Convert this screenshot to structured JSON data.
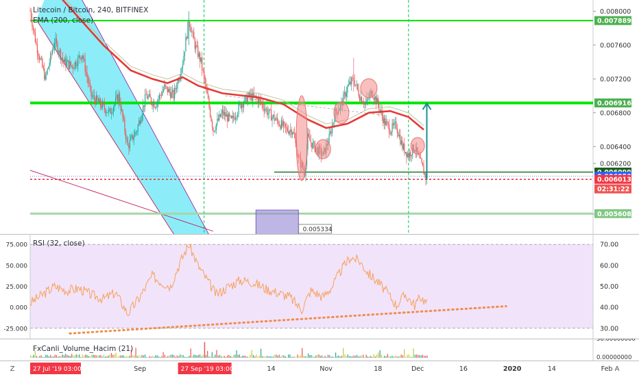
{
  "chart_data": [
    {
      "type": "candlestick",
      "title": "Litecoin / Bitcoin, 240, BITFINEX",
      "indicator": "EMA (200, close)",
      "price_axis": {
        "ticks": [
          "0.008000",
          "0.007600",
          "0.007200",
          "0.006800",
          "0.006400",
          "0.006200",
          "0.005600"
        ],
        "ylim": [
          0.0054,
          0.0081
        ]
      },
      "price_labels": [
        {
          "value": "0.007889",
          "color": "#4caf50"
        },
        {
          "value": "0.006916",
          "color": "#4caf50"
        },
        {
          "value": "0.006099",
          "color": "#1b5e20"
        },
        {
          "value": "0.006050",
          "color": "#2962ff"
        },
        {
          "value": "02:31:22",
          "color": "#ef5350"
        },
        {
          "value": "0.006013",
          "color": "#f23645"
        },
        {
          "value": "0.005608",
          "color": "#81c784"
        }
      ],
      "horizontal_levels": [
        0.007889,
        0.006916,
        0.006099,
        0.006013,
        0.005608
      ],
      "ema_200": [
        [
          "2019-07-27",
          0.0086
        ],
        [
          "2019-08-05",
          0.0082
        ],
        [
          "2019-08-20",
          0.0076
        ],
        [
          "2019-08-29",
          0.0073
        ],
        [
          "2019-09-05",
          0.0072
        ],
        [
          "2019-09-10",
          0.00715
        ],
        [
          "2019-09-15",
          0.00722
        ],
        [
          "2019-09-20",
          0.00712
        ],
        [
          "2019-09-28",
          0.00703
        ],
        [
          "2019-10-10",
          0.00698
        ],
        [
          "2019-10-18",
          0.0069
        ],
        [
          "2019-10-26",
          0.00672
        ],
        [
          "2019-11-01",
          0.00662
        ],
        [
          "2019-11-08",
          0.00667
        ],
        [
          "2019-11-15",
          0.0068
        ],
        [
          "2019-11-22",
          0.00682
        ],
        [
          "2019-11-28",
          0.00675
        ],
        [
          "2019-12-03",
          0.0066
        ]
      ],
      "price_path": [
        [
          "2019-07-27",
          0.008
        ],
        [
          "2019-07-29",
          0.0076
        ],
        [
          "2019-08-01",
          0.0072
        ],
        [
          "2019-08-04",
          0.00765
        ],
        [
          "2019-08-07",
          0.0074
        ],
        [
          "2019-08-10",
          0.00735
        ],
        [
          "2019-08-13",
          0.0075
        ],
        [
          "2019-08-16",
          0.007
        ],
        [
          "2019-08-19",
          0.0069
        ],
        [
          "2019-08-22",
          0.0068
        ],
        [
          "2019-08-25",
          0.007
        ],
        [
          "2019-08-28",
          0.0064
        ],
        [
          "2019-08-31",
          0.0066
        ],
        [
          "2019-09-03",
          0.007
        ],
        [
          "2019-09-06",
          0.0069
        ],
        [
          "2019-09-09",
          0.0071
        ],
        [
          "2019-09-12",
          0.007
        ],
        [
          "2019-09-15",
          0.0074
        ],
        [
          "2019-09-17",
          0.0079
        ],
        [
          "2019-09-19",
          0.0076
        ],
        [
          "2019-09-21",
          0.0074
        ],
        [
          "2019-09-23",
          0.007
        ],
        [
          "2019-09-25",
          0.0066
        ],
        [
          "2019-09-28",
          0.0068
        ],
        [
          "2019-10-01",
          0.0067
        ],
        [
          "2019-10-04",
          0.0069
        ],
        [
          "2019-10-07",
          0.007
        ],
        [
          "2019-10-10",
          0.00695
        ],
        [
          "2019-10-13",
          0.0068
        ],
        [
          "2019-10-16",
          0.0067
        ],
        [
          "2019-10-19",
          0.0066
        ],
        [
          "2019-10-21",
          0.0066
        ],
        [
          "2019-10-23",
          0.00625
        ],
        [
          "2019-10-25",
          0.0061
        ],
        [
          "2019-10-26",
          0.0065
        ],
        [
          "2019-10-28",
          0.0064
        ],
        [
          "2019-10-31",
          0.0063
        ],
        [
          "2019-11-02",
          0.0065
        ],
        [
          "2019-11-04",
          0.0068
        ],
        [
          "2019-11-06",
          0.0069
        ],
        [
          "2019-11-08",
          0.0071
        ],
        [
          "2019-11-10",
          0.0072
        ],
        [
          "2019-11-12",
          0.007
        ],
        [
          "2019-11-14",
          0.0069
        ],
        [
          "2019-11-16",
          0.00705
        ],
        [
          "2019-11-18",
          0.0069
        ],
        [
          "2019-11-20",
          0.0067
        ],
        [
          "2019-11-22",
          0.0066
        ],
        [
          "2019-11-24",
          0.00665
        ],
        [
          "2019-11-26",
          0.0064
        ],
        [
          "2019-11-28",
          0.0063
        ],
        [
          "2019-11-30",
          0.0064
        ],
        [
          "2019-12-02",
          0.0062
        ],
        [
          "2019-12-04",
          0.00601
        ]
      ]
    },
    {
      "type": "line",
      "title": "RSI (32, close)",
      "left_axis_ticks": [
        "75.000",
        "50.000",
        "25.000",
        "0.000",
        "-25.000"
      ],
      "right_axis_ticks": [
        "70.00",
        "60.00",
        "50.00",
        "40.00",
        "30.00"
      ],
      "band": [
        30,
        70
      ],
      "ylim": [
        27,
        73
      ],
      "series": [
        {
          "values": [
            [
              "2019-07-27",
              42
            ],
            [
              "2019-07-31",
              46
            ],
            [
              "2019-08-04",
              50
            ],
            [
              "2019-08-08",
              48
            ],
            [
              "2019-08-12",
              49
            ],
            [
              "2019-08-16",
              46
            ],
            [
              "2019-08-20",
              44
            ],
            [
              "2019-08-24",
              47
            ],
            [
              "2019-08-28",
              37
            ],
            [
              "2019-09-01",
              45
            ],
            [
              "2019-09-05",
              55
            ],
            [
              "2019-09-08",
              52
            ],
            [
              "2019-09-11",
              50
            ],
            [
              "2019-09-14",
              61
            ],
            [
              "2019-09-17",
              70
            ],
            [
              "2019-09-20",
              60
            ],
            [
              "2019-09-23",
              53
            ],
            [
              "2019-09-26",
              46
            ],
            [
              "2019-09-30",
              50
            ],
            [
              "2019-10-04",
              53
            ],
            [
              "2019-10-08",
              52
            ],
            [
              "2019-10-12",
              49
            ],
            [
              "2019-10-16",
              47
            ],
            [
              "2019-10-20",
              45
            ],
            [
              "2019-10-24",
              39
            ],
            [
              "2019-10-27",
              48
            ],
            [
              "2019-10-31",
              45
            ],
            [
              "2019-11-03",
              50
            ],
            [
              "2019-11-06",
              58
            ],
            [
              "2019-11-09",
              64
            ],
            [
              "2019-11-12",
              62
            ],
            [
              "2019-11-15",
              56
            ],
            [
              "2019-11-18",
              52
            ],
            [
              "2019-11-21",
              47
            ],
            [
              "2019-11-24",
              41
            ],
            [
              "2019-11-27",
              46
            ],
            [
              "2019-11-30",
              41
            ],
            [
              "2019-12-02",
              45
            ],
            [
              "2019-12-04",
              42
            ]
          ]
        }
      ],
      "trendline": [
        [
          "2019-08-09",
          27.5
        ],
        [
          "2019-12-30",
          40.5
        ]
      ]
    },
    {
      "type": "bar",
      "title": "FxCanli_Volume_Hacim (21)",
      "right_axis_ticks": [
        "50.00000000",
        "0.00000000"
      ]
    }
  ],
  "time_axis": {
    "labels": [
      "Sep",
      "16",
      "14",
      "Nov",
      "18",
      "Dec",
      "16",
      "2020",
      "14",
      "Feb"
    ],
    "highlight_labels": [
      "27 Jul '19   03:00",
      "27 Sep '19   03:00"
    ],
    "timezone_button": "Z",
    "auto_button": "A"
  },
  "annotations": {
    "price_box_label": "0.005334"
  },
  "colors": {
    "up": "#26a69a",
    "down": "#ef5350",
    "ema": "#e53935",
    "level": "#00e600",
    "wedge": "#00d8f0",
    "rsi": "#f7a15a",
    "rsi_band": "#f1e3fa",
    "arrow": "#1a8f8f",
    "highlight": "#f23645"
  }
}
